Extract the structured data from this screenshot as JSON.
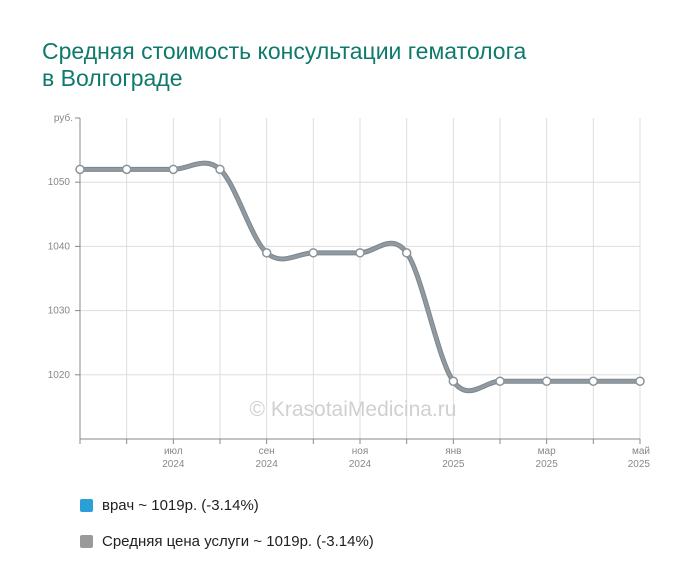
{
  "title": {
    "line1": "Средняя стоимость консультации гематолога",
    "line2": "в Волгограде"
  },
  "watermark": "© KrasotaiMedicina.ru",
  "colors": {
    "title": "#0f7a6c",
    "series_doctor": "#2a9fd8",
    "series_avg": "#909aa0",
    "legend_avg_swatch": "#9a9a9a",
    "grid": "#dddddd"
  },
  "legend": [
    {
      "label": "врач ~ 1019р. (-3.14%)",
      "color": "#2a9fd8"
    },
    {
      "label": "Средняя цена услуги ~ 1019р. (-3.14%)",
      "color": "#9a9a9a"
    }
  ],
  "chart_data": {
    "type": "line",
    "title": "Средняя стоимость консультации гематолога в Волгограде",
    "ylabel": "руб.",
    "xlabel": "",
    "ylim": [
      1010,
      1060
    ],
    "yticks": [
      1020,
      1030,
      1040,
      1050
    ],
    "x": [
      "2024-05",
      "2024-06",
      "2024-07",
      "2024-08",
      "2024-09",
      "2024-10",
      "2024-11",
      "2024-12",
      "2025-01",
      "2025-02",
      "2025-03",
      "2025-04",
      "2025-05"
    ],
    "xtick_labels": [
      {
        "month": "июл",
        "year": "2024"
      },
      {
        "month": "сен",
        "year": "2024"
      },
      {
        "month": "ноя",
        "year": "2024"
      },
      {
        "month": "янв",
        "year": "2025"
      },
      {
        "month": "мар",
        "year": "2025"
      },
      {
        "month": "май",
        "year": "2025"
      }
    ],
    "series": [
      {
        "name": "врач ~ 1019р. (-3.14%)",
        "values": [
          1052,
          1052,
          1052,
          1052,
          1039,
          1039,
          1039,
          1039,
          1019,
          1019,
          1019,
          1019,
          1019
        ]
      },
      {
        "name": "Средняя цена услуги ~ 1019р. (-3.14%)",
        "values": [
          1052,
          1052,
          1052,
          1052,
          1039,
          1039,
          1039,
          1039,
          1019,
          1019,
          1019,
          1019,
          1019
        ]
      }
    ],
    "grid": true,
    "legend_position": "bottom"
  }
}
